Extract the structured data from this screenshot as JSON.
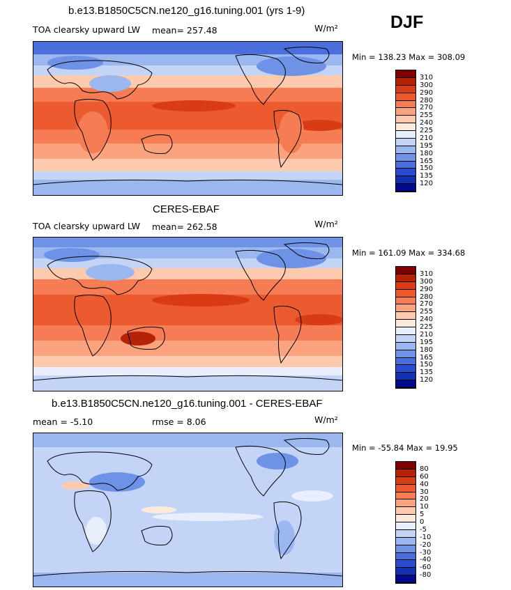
{
  "season": "DJF",
  "panels": [
    {
      "id": "model",
      "title": "b.e13.B1850C5CN.ne120_g16.tuning.001 (yrs 1-9)",
      "left_text": "TOA clearsky upward LW",
      "stat_text": "mean=  257.48",
      "stat2_text": "",
      "units": "W/m²",
      "minmax": "Min = 138.23 Max = 308.09",
      "mean": 257.48,
      "min": 138.23,
      "max": 308.09
    },
    {
      "id": "obs",
      "title": "CERES-EBAF",
      "left_text": "TOA clearsky upward LW",
      "stat_text": "mean=  262.58",
      "stat2_text": "",
      "units": "W/m²",
      "minmax": "Min = 161.09 Max = 334.68",
      "mean": 262.58,
      "min": 161.09,
      "max": 334.68
    },
    {
      "id": "diff",
      "title": "b.e13.B1850C5CN.ne120_g16.tuning.001 - CERES-EBAF",
      "left_text": "mean =   -5.10",
      "stat_text": "rmse =   8.06",
      "stat2_text": "",
      "units": "W/m²",
      "minmax": "Min = -55.84 Max =  19.95",
      "mean": -5.1,
      "rmse": 8.06,
      "min": -55.84,
      "max": 19.95
    }
  ],
  "colorbar_abs": {
    "levels": [
      "310",
      "300",
      "290",
      "280",
      "270",
      "255",
      "240",
      "225",
      "210",
      "195",
      "180",
      "165",
      "150",
      "135",
      "120"
    ],
    "colors": [
      "#800000",
      "#b52307",
      "#d93c15",
      "#ec5a2f",
      "#f57c53",
      "#fba27e",
      "#fdcaae",
      "#feeadb",
      "#e8eefc",
      "#c3d4f7",
      "#9bb7f0",
      "#6e93e6",
      "#4a6fdc",
      "#2a4bcc",
      "#1230b3",
      "#000a8a"
    ]
  },
  "colorbar_diff": {
    "levels": [
      "80",
      "60",
      "40",
      "30",
      "20",
      "10",
      "5",
      "0",
      "-5",
      "-10",
      "-20",
      "-30",
      "-40",
      "-60",
      "-80"
    ],
    "colors": [
      "#800000",
      "#b52307",
      "#d93c15",
      "#ec5a2f",
      "#f57c53",
      "#fba27e",
      "#fdcaae",
      "#feeadb",
      "#e8eefc",
      "#c3d4f7",
      "#9bb7f0",
      "#6e93e6",
      "#4a6fdc",
      "#2a4bcc",
      "#1230b3",
      "#000a8a"
    ]
  }
}
